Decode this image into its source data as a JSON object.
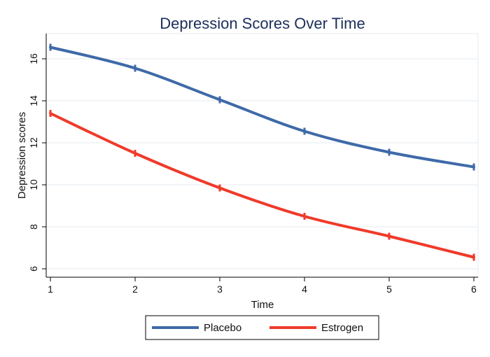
{
  "chart_data": {
    "type": "line",
    "title": "Depression Scores Over Time",
    "xlabel": "Time",
    "ylabel": "Depression scores",
    "x": [
      1,
      2,
      3,
      4,
      5,
      6
    ],
    "xlim": [
      0.95,
      6.05
    ],
    "ylim": [
      5.6,
      17.2
    ],
    "xticks": [
      1,
      2,
      3,
      4,
      5,
      6
    ],
    "yticks": [
      6,
      8,
      10,
      12,
      14,
      16
    ],
    "grid": true,
    "legend_position": "bottom",
    "series": [
      {
        "name": "Placebo",
        "color": "#3e6aa8",
        "values": [
          16.55,
          15.55,
          14.05,
          12.55,
          11.55,
          10.85
        ]
      },
      {
        "name": "Estrogen",
        "color": "#f03a2a",
        "values": [
          13.4,
          11.5,
          9.85,
          8.5,
          7.55,
          6.55
        ]
      }
    ]
  }
}
